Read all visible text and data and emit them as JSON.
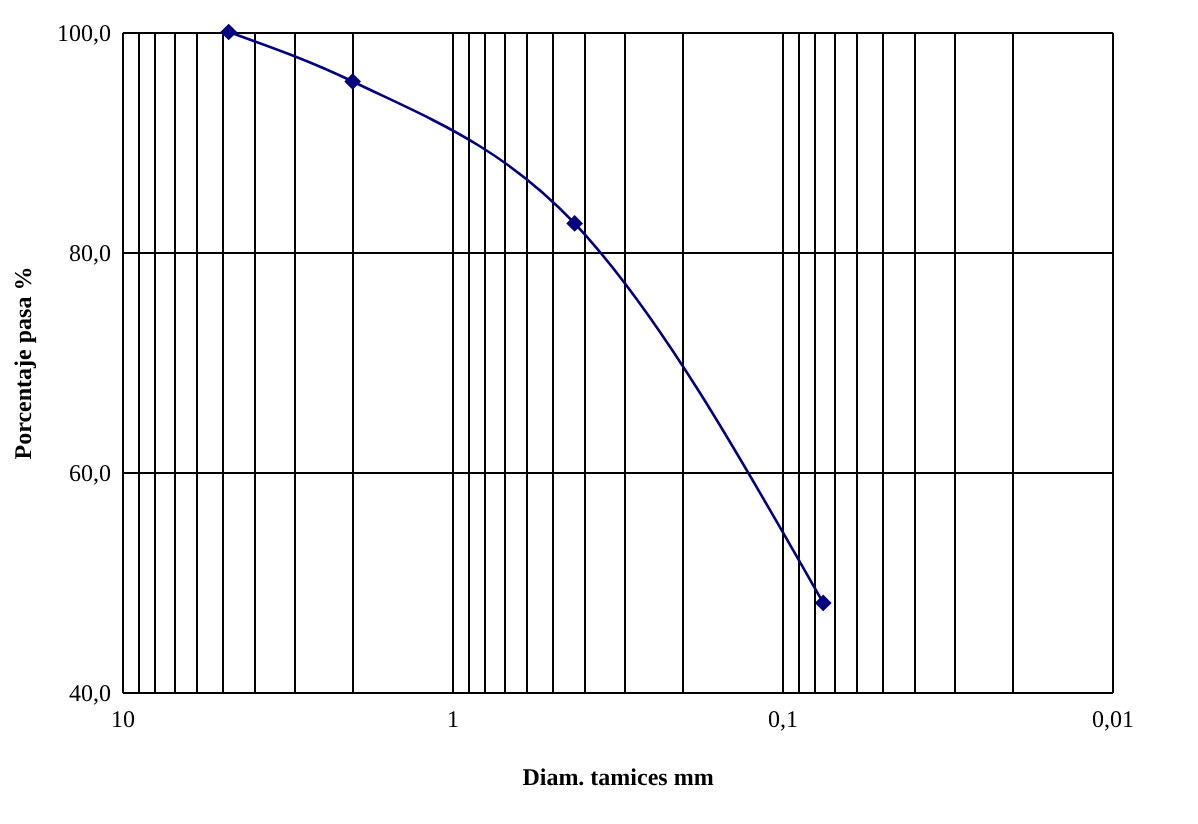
{
  "chart_data": {
    "type": "line",
    "xlabel": "Diam. tamices mm",
    "ylabel": "Porcentaje pasa %",
    "x": [
      4.75,
      2.0,
      0.425,
      0.075
    ],
    "series": [
      {
        "color": "#000080",
        "values": [
          100.0,
          95.5,
          82.6,
          48.1
        ]
      }
    ],
    "log": "x",
    "marker": "diamond",
    "line_style": "solid",
    "grid": true,
    "xlim": [
      10,
      0.01
    ],
    "xticks": [
      10,
      {
        "value": 9,
        "label": null
      },
      {
        "value": 8,
        "label": null
      },
      {
        "value": 7,
        "label": null
      },
      {
        "value": 6,
        "label": null
      },
      {
        "value": 5,
        "label": null
      },
      {
        "value": 4,
        "label": null
      },
      {
        "value": 3,
        "label": null
      },
      {
        "value": 2,
        "label": null
      },
      1,
      {
        "value": 0.9,
        "label": null
      },
      {
        "value": 0.8,
        "label": null
      },
      {
        "value": 0.7,
        "label": null
      },
      {
        "value": 0.6,
        "label": null
      },
      {
        "value": 0.5,
        "label": null
      },
      {
        "value": 0.4,
        "label": null
      },
      {
        "value": 0.3,
        "label": null
      },
      {
        "value": 0.2,
        "label": null
      },
      {
        "value": 0.1,
        "label": "0,1"
      },
      {
        "value": 0.09,
        "label": null
      },
      {
        "value": 0.08,
        "label": null
      },
      {
        "value": 0.07,
        "label": null
      },
      {
        "value": 0.06,
        "label": null
      },
      {
        "value": 0.05,
        "label": null
      },
      {
        "value": 0.04,
        "label": null
      },
      {
        "value": 0.03,
        "label": null
      },
      {
        "value": 0.02,
        "label": null
      },
      {
        "value": 0.01,
        "label": "0,01"
      }
    ],
    "ylim": [
      40,
      100
    ],
    "yticks": [
      {
        "value": 40,
        "label": "40,0"
      },
      {
        "value": 60,
        "label": "60,0"
      },
      {
        "value": 80,
        "label": "80,0"
      },
      {
        "value": 100,
        "label": "100,0"
      }
    ]
  }
}
